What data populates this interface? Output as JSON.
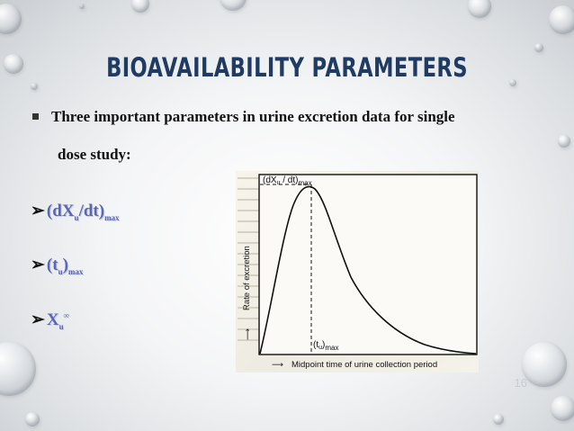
{
  "slide": {
    "title": "BIOAVAILABILITY PARAMETERS",
    "bullet_line1": "Three important parameters in urine excretion data for single",
    "bullet_line2": "dose study:",
    "items": [
      {
        "main": "(dX",
        "sub1": "u",
        "mid": "/dt)",
        "sub2": "max"
      },
      {
        "main": "(t",
        "sub1": "u",
        "mid": ")",
        "sub2": "max"
      },
      {
        "main": "X",
        "sub1": "u",
        "sup": "∞"
      }
    ],
    "slide_number": "16"
  },
  "figure": {
    "y_axis_label": "Rate of excretion",
    "x_axis_label": "Midpoint time of urine collection period",
    "peak_label_main": "(dX",
    "peak_label_sub": "u",
    "peak_label_mid": " / dt)",
    "peak_label_max": "max",
    "time_label_main": "(t",
    "time_label_sub": "u",
    "time_label_mid": ")",
    "time_label_max": "max"
  }
}
